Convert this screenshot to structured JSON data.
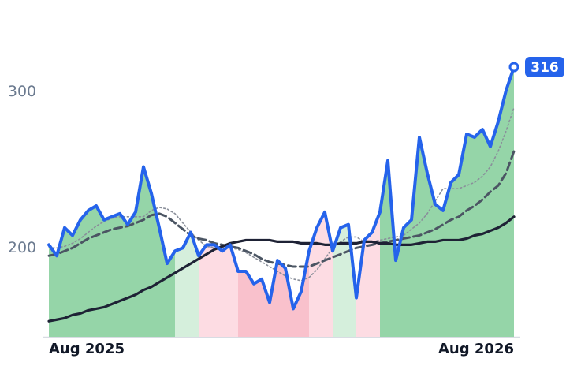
{
  "chart_data": {
    "type": "line",
    "categories": [
      "Aug 2025",
      null,
      null,
      null,
      null,
      null,
      null,
      null,
      null,
      null,
      null,
      null,
      null,
      null,
      null,
      null,
      null,
      null,
      null,
      null,
      null,
      null,
      null,
      null,
      null,
      null,
      null,
      null,
      null,
      null,
      null,
      null,
      null,
      null,
      null,
      null,
      null,
      null,
      null,
      null,
      null,
      null,
      null,
      null,
      null,
      null,
      null,
      null,
      null,
      null,
      null,
      null,
      null,
      null,
      null,
      null,
      null,
      null,
      null,
      "Aug 2026"
    ],
    "series": [
      {
        "color": "#2563eb",
        "values": [
          202,
          195,
          213,
          208,
          218,
          224,
          227,
          218,
          220,
          222,
          215,
          223,
          252,
          235,
          213,
          190,
          198,
          200,
          210,
          195,
          202,
          202,
          198,
          202,
          185,
          185,
          177,
          180,
          165,
          192,
          187,
          161,
          172,
          198,
          213,
          223,
          198,
          213,
          215,
          168,
          205,
          210,
          223,
          256,
          192,
          213,
          218,
          271,
          248,
          228,
          224,
          242,
          247,
          273,
          271,
          276,
          265,
          281,
          301,
          316
        ]
      },
      {
        "color": "#8a8f9a",
        "dash": "dotted",
        "values": [
          200,
          200,
          201,
          203,
          206,
          210,
          214,
          217,
          219,
          220,
          220,
          220,
          220,
          224,
          226,
          225,
          222,
          216,
          210,
          205,
          201,
          200,
          200,
          200,
          199,
          197,
          194,
          191,
          188,
          185,
          182,
          180,
          179,
          181,
          186,
          193,
          200,
          204,
          207,
          207,
          204,
          204,
          205,
          206,
          207,
          208,
          212,
          216,
          222,
          230,
          238,
          238,
          238,
          240,
          242,
          246,
          252,
          262,
          275,
          290
        ]
      },
      {
        "color": "#4b5563",
        "dash": "dashed",
        "values": [
          195,
          196,
          198,
          200,
          203,
          206,
          208,
          210,
          212,
          213,
          214,
          216,
          218,
          221,
          222,
          220,
          216,
          212,
          208,
          206,
          205,
          203,
          202,
          201,
          200,
          198,
          196,
          193,
          191,
          190,
          189,
          188,
          188,
          188,
          190,
          192,
          194,
          196,
          198,
          200,
          201,
          202,
          203,
          204,
          205,
          206,
          207,
          208,
          210,
          212,
          215,
          218,
          220,
          224,
          227,
          231,
          236,
          240,
          248,
          262
        ]
      },
      {
        "color": "#1e2235",
        "dash": "solid",
        "values": [
          153,
          154,
          155,
          157,
          158,
          160,
          161,
          162,
          164,
          166,
          168,
          170,
          173,
          175,
          178,
          181,
          184,
          187,
          190,
          193,
          196,
          199,
          201,
          203,
          204,
          205,
          205,
          205,
          205,
          204,
          204,
          204,
          203,
          203,
          203,
          202,
          202,
          203,
          203,
          203,
          204,
          204,
          203,
          203,
          202,
          202,
          202,
          203,
          204,
          204,
          205,
          205,
          205,
          206,
          208,
          209,
          211,
          213,
          216,
          220
        ]
      }
    ],
    "bands": [
      {
        "from": 0,
        "to": 16,
        "color": "#95d5a8"
      },
      {
        "from": 16,
        "to": 19,
        "color": "#d5efdc"
      },
      {
        "from": 19,
        "to": 24,
        "color": "#fddce3"
      },
      {
        "from": 24,
        "to": 33,
        "color": "#f9c1cc"
      },
      {
        "from": 33,
        "to": 36,
        "color": "#fddce3"
      },
      {
        "from": 36,
        "to": 39,
        "color": "#d5efdc"
      },
      {
        "from": 39,
        "to": 42,
        "color": "#fddce3"
      },
      {
        "from": 42,
        "to": 59,
        "color": "#95d5a8"
      }
    ],
    "ylim": [
      143,
      359
    ],
    "yticks": [
      200,
      300
    ],
    "grid": false
  }
}
